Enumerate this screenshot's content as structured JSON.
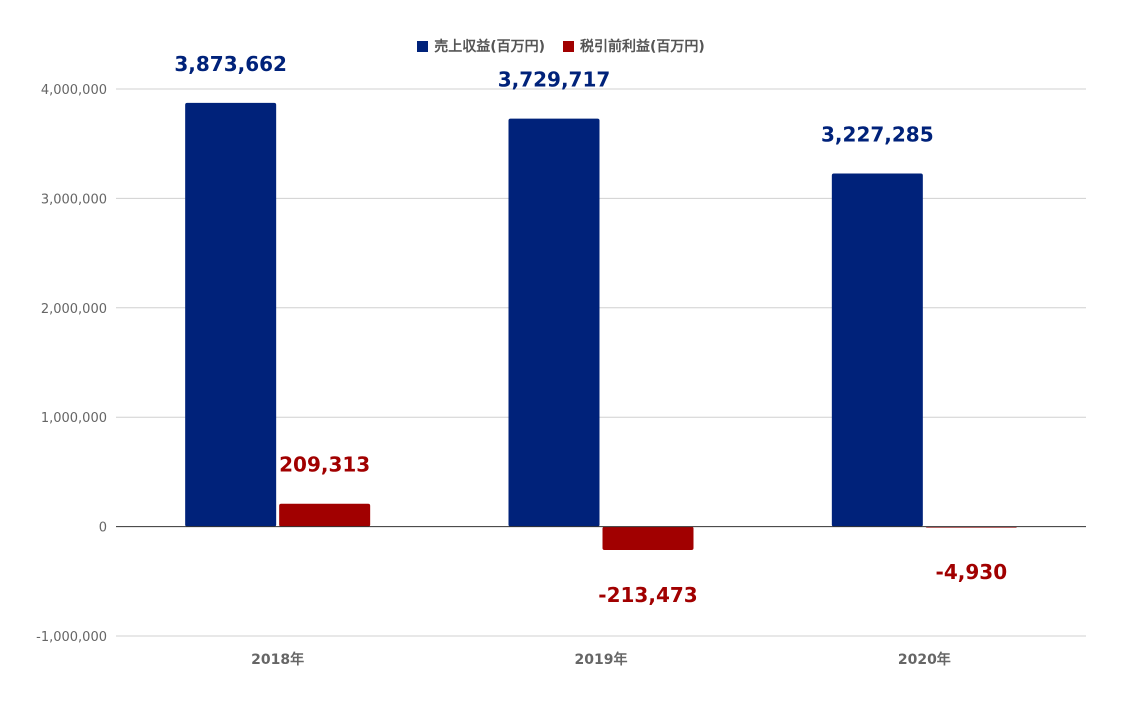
{
  "colors": {
    "revenue": "#00227a",
    "pretax": "#a10000",
    "grid": "#d0d0d0",
    "axis_text": "#666666",
    "zero_line": "#333333"
  },
  "legend": {
    "revenue_label": "売上収益(百万円)",
    "pretax_label": "税引前利益(百万円)"
  },
  "chart_data": {
    "type": "bar",
    "title": "",
    "xlabel": "",
    "ylabel": "",
    "categories": [
      "2018年",
      "2019年",
      "2020年"
    ],
    "series": [
      {
        "name": "売上収益(百万円)",
        "values": [
          3873662,
          3729717,
          3227285
        ],
        "labels": [
          "3,873,662",
          "3,729,717",
          "3,227,285"
        ]
      },
      {
        "name": "税引前利益(百万円)",
        "values": [
          209313,
          -213473,
          -4930
        ],
        "labels": [
          "209,313",
          "-213,473",
          "-4,930"
        ]
      }
    ],
    "ylim": [
      -1000000,
      4000000
    ],
    "yticks": [
      -1000000,
      0,
      1000000,
      2000000,
      3000000,
      4000000
    ],
    "ytick_labels": [
      "-1,000,000",
      "0",
      "1,000,000",
      "2,000,000",
      "3,000,000",
      "4,000,000"
    ],
    "grid": true,
    "legend_position": "top-center"
  }
}
